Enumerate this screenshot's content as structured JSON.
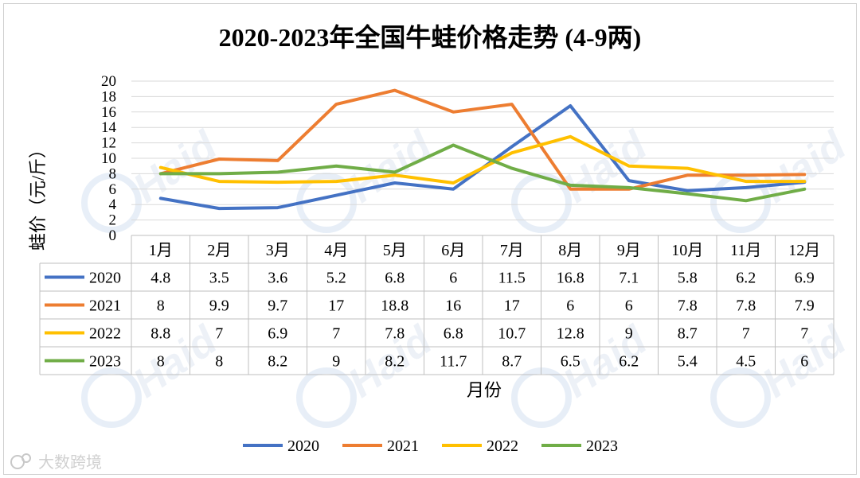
{
  "chart_data": {
    "type": "line",
    "title": "2020-2023年全国牛蛙价格走势 (4-9两)",
    "xlabel": "月份",
    "ylabel": "蛙价（元/斤）",
    "ylim": [
      0,
      20
    ],
    "yticks": [
      0,
      2,
      4,
      6,
      8,
      10,
      12,
      14,
      16,
      18,
      20
    ],
    "grid": true,
    "legend_position": "bottom",
    "categories": [
      "1月",
      "2月",
      "3月",
      "4月",
      "5月",
      "6月",
      "7月",
      "8月",
      "9月",
      "10月",
      "11月",
      "12月"
    ],
    "series": [
      {
        "name": "2020",
        "color": "#4472C4",
        "values": [
          4.8,
          3.5,
          3.6,
          5.2,
          6.8,
          6,
          11.5,
          16.8,
          7.1,
          5.8,
          6.2,
          6.9
        ]
      },
      {
        "name": "2021",
        "color": "#ED7D31",
        "values": [
          8,
          9.9,
          9.7,
          17,
          18.8,
          16,
          17,
          6,
          6,
          7.8,
          7.8,
          7.9
        ]
      },
      {
        "name": "2022",
        "color": "#FFC000",
        "values": [
          8.8,
          7,
          6.9,
          7,
          7.8,
          6.8,
          10.7,
          12.8,
          9,
          8.7,
          7,
          7
        ]
      },
      {
        "name": "2023",
        "color": "#70AD47",
        "values": [
          8,
          8,
          8.2,
          9,
          8.2,
          11.7,
          8.7,
          6.5,
          6.2,
          5.4,
          4.5,
          6
        ]
      }
    ]
  },
  "watermark": {
    "brand": "Haid",
    "footer": "大数跨境"
  }
}
